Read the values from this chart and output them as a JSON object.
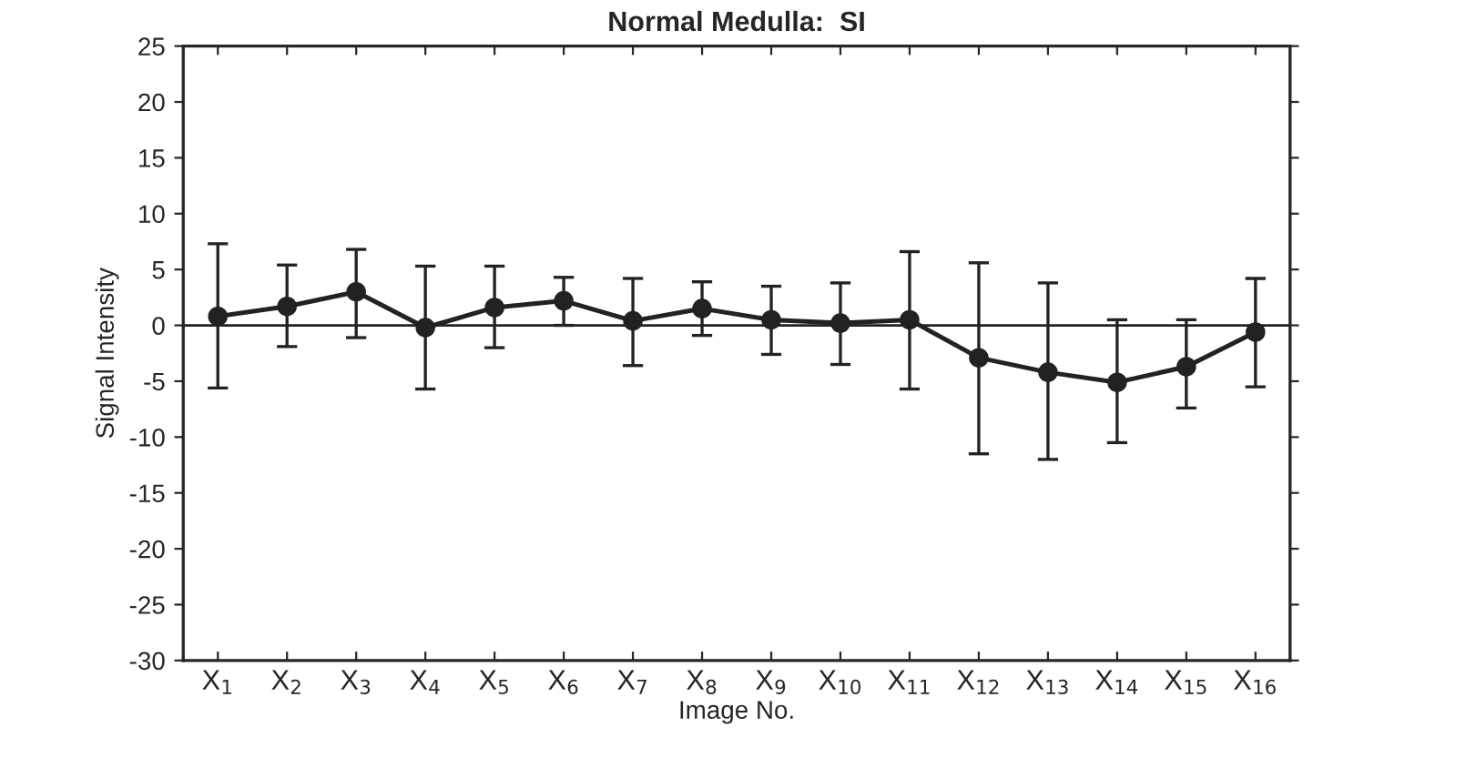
{
  "chart_data": {
    "type": "line",
    "title": "Normal Medulla:  SI",
    "xlabel": "Image No.",
    "ylabel": "Signal Intensity",
    "categories": [
      "X$_{1}$",
      "X$_{2}$",
      "X$_{3}$",
      "X$_{4}$",
      "X$_{5}$",
      "X$_{6}$",
      "X$_{7}$",
      "X$_{8}$",
      "X$_{9}$",
      "X$_{10}$",
      "X$_{11}$",
      "X$_{12}$",
      "X$_{13}$",
      "X$_{14}$",
      "X$_{15}$",
      "X$_{16}$"
    ],
    "series": [
      {
        "color": "#222222",
        "values": [
          0.8,
          1.7,
          3.0,
          -0.2,
          1.6,
          2.2,
          0.4,
          1.5,
          0.5,
          0.2,
          0.5,
          -2.9,
          -4.2,
          -5.1,
          -3.7,
          -0.6
        ],
        "errors": [
          [
            -5.6,
            7.3
          ],
          [
            -1.9,
            5.4
          ],
          [
            -1.1,
            6.8
          ],
          [
            -5.7,
            5.3
          ],
          [
            -2.0,
            5.3
          ],
          [
            0.0,
            4.3
          ],
          [
            -3.6,
            4.2
          ],
          [
            -0.9,
            3.9
          ],
          [
            -2.6,
            3.5
          ],
          [
            -3.5,
            3.8
          ],
          [
            -5.7,
            6.6
          ],
          [
            -11.5,
            5.6
          ],
          [
            -12.0,
            3.8
          ],
          [
            -10.5,
            0.5
          ],
          [
            -7.4,
            0.5
          ],
          [
            -5.5,
            4.2
          ]
        ]
      }
    ],
    "ylim": [
      -30,
      25
    ],
    "yticks": [
      -30,
      -25,
      -20,
      -15,
      -10,
      -5,
      0,
      5,
      10,
      15,
      20,
      25
    ],
    "ref_lines": [
      {
        "axis": "y",
        "value": 0,
        "color": "#222222"
      }
    ],
    "marker": "circle",
    "line_style": "solid",
    "grid": false,
    "legend": false
  }
}
